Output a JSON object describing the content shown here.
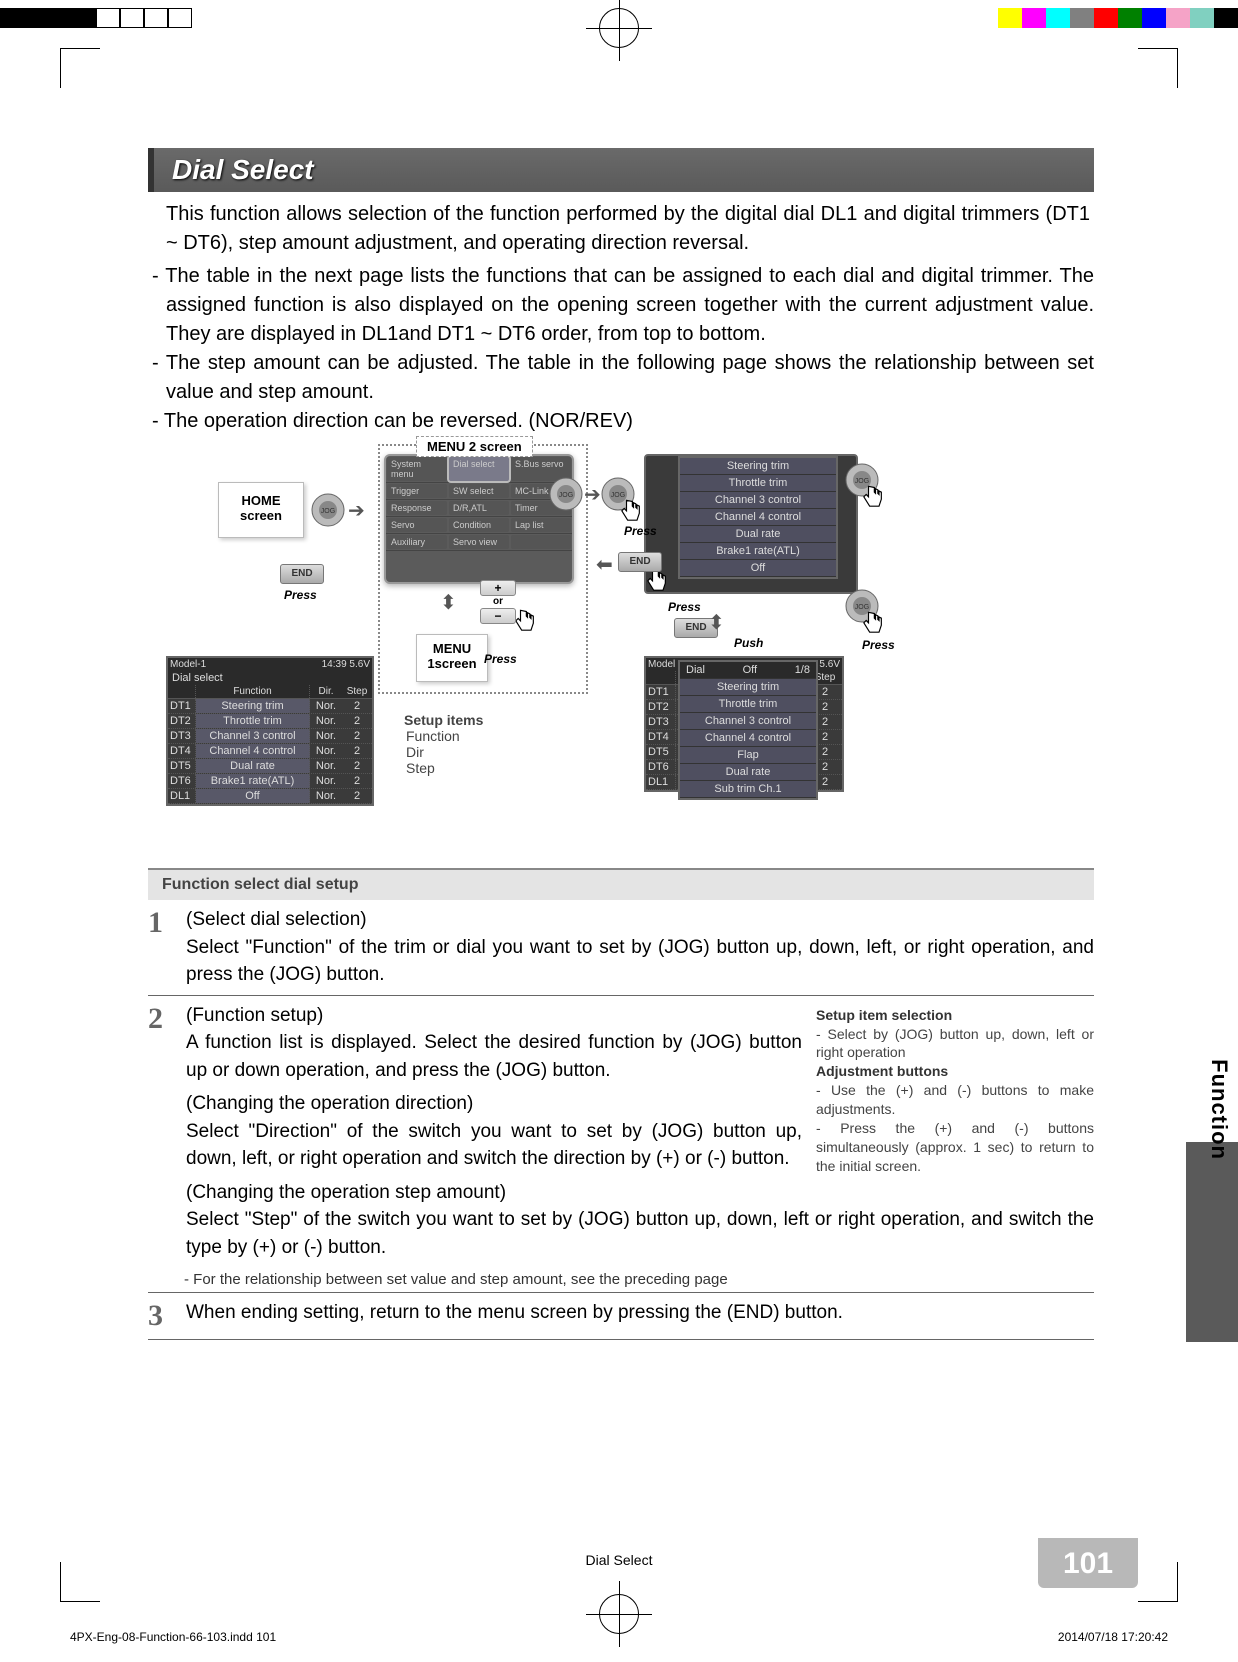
{
  "colorbar": {
    "left": [
      "#000000",
      "#000000",
      "#000000",
      "#000000",
      "#ffffff",
      "#ffffff",
      "#ffffff",
      "#ffffff"
    ],
    "right": [
      "#ffff00",
      "#ff00ff",
      "#00ffff",
      "#808080",
      "#ff0000",
      "#008000",
      "#0000ff",
      "#f5a3c7",
      "#80d0c0",
      "#000000"
    ]
  },
  "header": {
    "title": "Dial Select"
  },
  "intro": "This function allows selection of the function performed by the digital dial DL1 and digital trimmers (DT1 ~ DT6), step amount adjustment, and operating direction reversal.",
  "bullets": {
    "b1": "- The table in the next page lists the functions that can be assigned to each dial and digital trimmer. The assigned function is also displayed on the opening screen together with the current adjustment value. They are displayed in DL1and DT1 ~ DT6 order, from top to bottom.",
    "b2": "- The step amount can be adjusted. The table in the following page shows the relationship between set value and step amount.",
    "b3": "- The operation direction can be reversed. (NOR/REV)"
  },
  "diagram": {
    "home_label": "HOME screen",
    "menu2_label": "MENU 2 screen",
    "menu1_label": "MENU 1screen",
    "press": "Press",
    "push": "Push",
    "end": "END",
    "jog": "JOG",
    "or": "or",
    "setup_items_head": "Setup items",
    "setup_items": [
      "Function",
      "Dir",
      "Step"
    ],
    "menu2_rows": [
      [
        "System menu",
        "Dial select",
        "S.Bus servo"
      ],
      [
        "Trigger",
        "SW select",
        "MC-Link"
      ],
      [
        "Response",
        "D/R,ATL",
        "Timer"
      ],
      [
        "Servo",
        "Condition",
        "Lap list"
      ],
      [
        "Auxiliary",
        "Servo view",
        ""
      ]
    ],
    "menu2_selected": "Dial select",
    "popup1_title": "Dial select",
    "popup1_items": [
      "Steering trim",
      "Throttle trim",
      "Channel 3 control",
      "Channel 4 control",
      "Dual rate",
      "Brake1 rate(ATL)",
      "Off"
    ],
    "popup2_header": {
      "dial": "Dial",
      "val": "Off",
      "page": "1/8"
    },
    "popup2_items": [
      "Steering trim",
      "Throttle trim",
      "Channel 3 control",
      "Channel 4 control",
      "Flap",
      "Dual rate",
      "Sub trim Ch.1"
    ]
  },
  "lcd_left": {
    "hdr_left": "Model-1",
    "hdr_right": "14:39 5.6V",
    "title": "Dial select",
    "cols": [
      "",
      "Function",
      "Dir.",
      "Step"
    ],
    "rows": [
      [
        "DT1",
        "Steering trim",
        "Nor.",
        "2"
      ],
      [
        "DT2",
        "Throttle trim",
        "Nor.",
        "2"
      ],
      [
        "DT3",
        "Channel 3 control",
        "Nor.",
        "2"
      ],
      [
        "DT4",
        "Channel 4 control",
        "Nor.",
        "2"
      ],
      [
        "DT5",
        "Dual rate",
        "Nor.",
        "2"
      ],
      [
        "DT6",
        "Brake1 rate(ATL)",
        "Nor.",
        "2"
      ],
      [
        "DL1",
        "Off",
        "Nor.",
        "2"
      ]
    ]
  },
  "lcd_right": {
    "hdr_left": "Model",
    "hdr_right": "5.6V",
    "cols": [
      "",
      "Step"
    ],
    "rows": [
      [
        "DT1",
        "2"
      ],
      [
        "DT2",
        "2"
      ],
      [
        "DT3",
        "2"
      ],
      [
        "DT4",
        "2"
      ],
      [
        "DT5",
        "2"
      ],
      [
        "DT6",
        "2"
      ],
      [
        "DL1",
        "2"
      ]
    ]
  },
  "section_title": "Function select dial setup",
  "steps": {
    "s1": {
      "num": "1",
      "title": "(Select dial selection)",
      "body": "Select \"Function\" of the trim or dial you want to set by (JOG) button up, down, left, or right operation, and press the (JOG) button."
    },
    "s2": {
      "num": "2",
      "title": "(Function setup)",
      "p1": "A function list is displayed. Select the desired function by (JOG) button up or down operation, and press the (JOG) button.",
      "p2t": "(Changing the operation direction)",
      "p2": "Select \"Direction\" of the switch you want to set by (JOG) button up, down, left, or right operation and switch the direction by (+) or (-) button.",
      "p3t": "(Changing the operation step amount)",
      "p3": "Select \"Step\" of the switch you want to set by (JOG) button up, down, left or right  operation, and switch the type by (+) or (-) button.",
      "note": "- For the relationship between set value and step amount, see the preceding page"
    },
    "s3": {
      "num": "3",
      "body": "When ending setting, return to the menu screen by pressing the (END) button."
    }
  },
  "right_col": {
    "h1": "Setup item selection",
    "p1": "- Select by (JOG) button up, down, left or right operation",
    "h2": "Adjustment buttons",
    "p2": "- Use the (+) and (-) buttons to make adjustments.",
    "p3": "- Press the (+) and (-) buttons simultaneously (approx. 1 sec) to return to the initial screen."
  },
  "side_tab": "Function",
  "page_num": "101",
  "foot_title": "Dial Select",
  "foot_file": "4PX-Eng-08-Function-66-103.indd   101",
  "foot_date": "2014/07/18   17:20:42"
}
